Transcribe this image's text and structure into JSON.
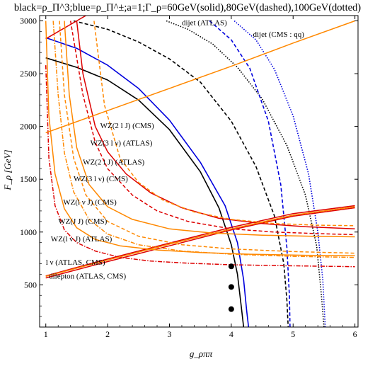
{
  "chart_data": {
    "type": "line",
    "title": "black=ρ_Π^3;blue=ρ_Π^±;a=1;Γ_ρ=60GeV(solid),80GeV(dashed),100GeV(dotted)",
    "xlabel": "g_ρππ",
    "ylabel": "F_ρ [GeV]",
    "xlim": [
      0.9,
      6.05
    ],
    "ylim": [
      100,
      3050
    ],
    "xticks": [
      "1",
      "2",
      "3",
      "4",
      "5",
      "6"
    ],
    "yticks": [
      "500",
      "1000",
      "1500",
      "2000",
      "2500",
      "3000"
    ],
    "grid": false,
    "colors": {
      "black": "#000000",
      "blue": "#0000dd",
      "red": "#dd0000",
      "orange": "#ff8800"
    },
    "series": [
      {
        "color": "black",
        "style": "solid",
        "x": [
          1.0,
          1.5,
          2.0,
          2.5,
          3.0,
          3.5,
          3.8,
          4.0,
          4.1,
          4.16,
          4.2
        ],
        "y": [
          2650,
          2560,
          2440,
          2250,
          1970,
          1570,
          1230,
          880,
          600,
          300,
          100
        ]
      },
      {
        "color": "black",
        "style": "dashed",
        "x": [
          1.45,
          2.0,
          2.5,
          3.0,
          3.5,
          4.0,
          4.4,
          4.7,
          4.85,
          4.9,
          4.92
        ],
        "y": [
          3000,
          2920,
          2800,
          2640,
          2420,
          2050,
          1620,
          1150,
          700,
          350,
          100
        ]
      },
      {
        "color": "black",
        "style": "dotted",
        "x": [
          2.95,
          3.3,
          3.7,
          4.1,
          4.5,
          4.9,
          5.2,
          5.38,
          5.45,
          5.5
        ],
        "y": [
          3000,
          2920,
          2780,
          2560,
          2260,
          1820,
          1350,
          870,
          450,
          100
        ]
      },
      {
        "color": "blue",
        "style": "solid",
        "x": [
          1.0,
          1.5,
          2.0,
          2.5,
          3.0,
          3.5,
          3.9,
          4.1,
          4.2,
          4.25,
          4.28
        ],
        "y": [
          2840,
          2740,
          2580,
          2360,
          2060,
          1660,
          1250,
          900,
          550,
          250,
          100
        ]
      },
      {
        "color": "blue",
        "style": "dashed",
        "x": [
          3.65,
          4.0,
          4.3,
          4.6,
          4.8,
          4.9,
          4.94,
          4.95
        ],
        "y": [
          3000,
          2820,
          2550,
          2050,
          1450,
          850,
          400,
          100
        ]
      },
      {
        "color": "blue",
        "style": "dotted",
        "x": [
          4.05,
          4.4,
          4.7,
          5.0,
          5.25,
          5.4,
          5.48,
          5.52
        ],
        "y": [
          3000,
          2820,
          2540,
          2100,
          1550,
          1000,
          550,
          100
        ]
      },
      {
        "color": "red",
        "style": "solid",
        "label": "WZ(3 l ν) (ATLAS)",
        "x": [
          1.5,
          1.6,
          1.8,
          2.0,
          2.3,
          2.7,
          3.2,
          3.8,
          4.5,
          5.2,
          6.0
        ],
        "y": [
          3000,
          2500,
          2000,
          1760,
          1550,
          1370,
          1230,
          1130,
          1080,
          1050,
          1030
        ]
      },
      {
        "color": "red",
        "style": "dashed",
        "x": [
          1.4,
          1.6,
          1.8,
          2.0,
          2.4,
          2.8,
          3.3,
          4.0,
          4.7,
          5.4,
          6.0
        ],
        "y": [
          3000,
          2300,
          1850,
          1600,
          1350,
          1200,
          1100,
          1030,
          1000,
          985,
          975
        ]
      },
      {
        "color": "red",
        "style": "dashdot",
        "label": "l ν (ATLAS, CMS)",
        "x": [
          1.0,
          1.05,
          1.15,
          1.3,
          1.5,
          1.8,
          2.2,
          2.7,
          3.3,
          4.0,
          5.0,
          6.0
        ],
        "y": [
          2580,
          1700,
          1250,
          1020,
          900,
          820,
          760,
          725,
          705,
          690,
          680,
          672
        ]
      },
      {
        "color": "red",
        "style": "solid",
        "label": "dilepton (ATLAS, CMS)",
        "x": [
          1.0,
          2.0,
          3.0,
          4.0,
          5.0,
          6.0
        ],
        "y": [
          565,
          720,
          870,
          1020,
          1150,
          1230
        ]
      },
      {
        "color": "red",
        "style": "solid",
        "x": [
          1.0,
          2.0,
          3.0,
          4.0,
          5.0,
          6.0
        ],
        "y": [
          585,
          745,
          895,
          1045,
          1175,
          1250
        ]
      },
      {
        "color": "red",
        "style": "solid",
        "label": "dijet (ATLAS)",
        "x": [
          1.0,
          1.5,
          2.0
        ],
        "y": [
          2830,
          3000,
          3170
        ]
      },
      {
        "color": "orange",
        "style": "solid",
        "label": "dijet (CMS : qq)",
        "x": [
          1.0,
          2.0,
          3.0,
          4.0,
          5.0,
          6.0
        ],
        "y": [
          1940,
          2150,
          2360,
          2570,
          2790,
          3000
        ]
      },
      {
        "color": "orange",
        "style": "solid",
        "x": [
          1.0,
          2.0,
          3.0,
          4.0,
          5.0,
          6.0
        ],
        "y": [
          580,
          735,
          885,
          1030,
          1160,
          1240
        ]
      },
      {
        "color": "orange",
        "style": "solid",
        "label": "WZ(2 l J) (CMS)",
        "x": [
          1.3,
          1.38,
          1.5,
          1.7,
          2.0,
          2.4,
          3.0,
          3.7,
          4.5,
          5.3,
          6.0
        ],
        "y": [
          3000,
          2300,
          1800,
          1450,
          1240,
          1120,
          1030,
          990,
          970,
          960,
          955
        ]
      },
      {
        "color": "orange",
        "style": "dashed",
        "label": "WZ(2 l J) (ATLAS)",
        "x": [
          1.78,
          1.95,
          2.2,
          2.5,
          2.9,
          3.4,
          4.0,
          4.7,
          5.4,
          6.0
        ],
        "y": [
          3000,
          2200,
          1700,
          1470,
          1300,
          1190,
          1120,
          1080,
          1065,
          1060
        ]
      },
      {
        "color": "orange",
        "style": "solid",
        "label": "WZ(J J) (CMS)",
        "x": [
          1.0,
          1.05,
          1.15,
          1.3,
          1.5,
          1.8,
          2.2,
          2.8,
          3.5,
          4.3,
          5.2,
          6.0
        ],
        "y": [
          3000,
          2100,
          1550,
          1220,
          1040,
          930,
          870,
          830,
          805,
          790,
          780,
          775
        ]
      },
      {
        "color": "orange",
        "style": "dashdot",
        "label": "WZ(l ν J) (ATLAS)",
        "x": [
          1.12,
          1.2,
          1.3,
          1.45,
          1.7,
          2.0,
          2.5,
          3.2,
          4.0,
          5.0,
          6.0
        ],
        "y": [
          3000,
          2300,
          1750,
          1380,
          1120,
          980,
          880,
          820,
          790,
          770,
          760
        ]
      },
      {
        "color": "orange",
        "style": "dashed",
        "x": [
          1.22,
          1.3,
          1.45,
          1.65,
          2.0,
          2.5,
          3.2,
          4.0,
          5.0,
          6.0
        ],
        "y": [
          3000,
          2300,
          1700,
          1350,
          1100,
          960,
          880,
          840,
          815,
          800
        ]
      }
    ],
    "points": [
      {
        "x": 4.0,
        "y": 675
      },
      {
        "x": 4.0,
        "y": 480
      },
      {
        "x": 4.0,
        "y": 270
      }
    ],
    "annotations": [
      {
        "text": "dijet (ATLAS)",
        "x": 3.2,
        "y": 2960
      },
      {
        "text": "dijet (CMS : qq)",
        "x": 4.35,
        "y": 2850
      },
      {
        "text": "WZ(2 l J) (CMS)",
        "x": 1.88,
        "y": 1985
      },
      {
        "text": "WZ(3 l ν) (ATLAS)",
        "x": 1.72,
        "y": 1820
      },
      {
        "text": "WZ(2 l J) (ATLAS)",
        "x": 1.6,
        "y": 1640
      },
      {
        "text": "WZ(3 l ν) (CMS)",
        "x": 1.45,
        "y": 1480
      },
      {
        "text": "WZ(l ν J) (CMS)",
        "x": 1.28,
        "y": 1260
      },
      {
        "text": "WZ(J J) (CMS)",
        "x": 1.2,
        "y": 1080
      },
      {
        "text": "WZ(l ν J) (ATLAS)",
        "x": 1.08,
        "y": 910
      },
      {
        "text": "l ν (ATLAS, CMS)",
        "x": 1.0,
        "y": 690
      },
      {
        "text": "dilepton (ATLAS, CMS)",
        "x": 1.05,
        "y": 560
      }
    ]
  }
}
